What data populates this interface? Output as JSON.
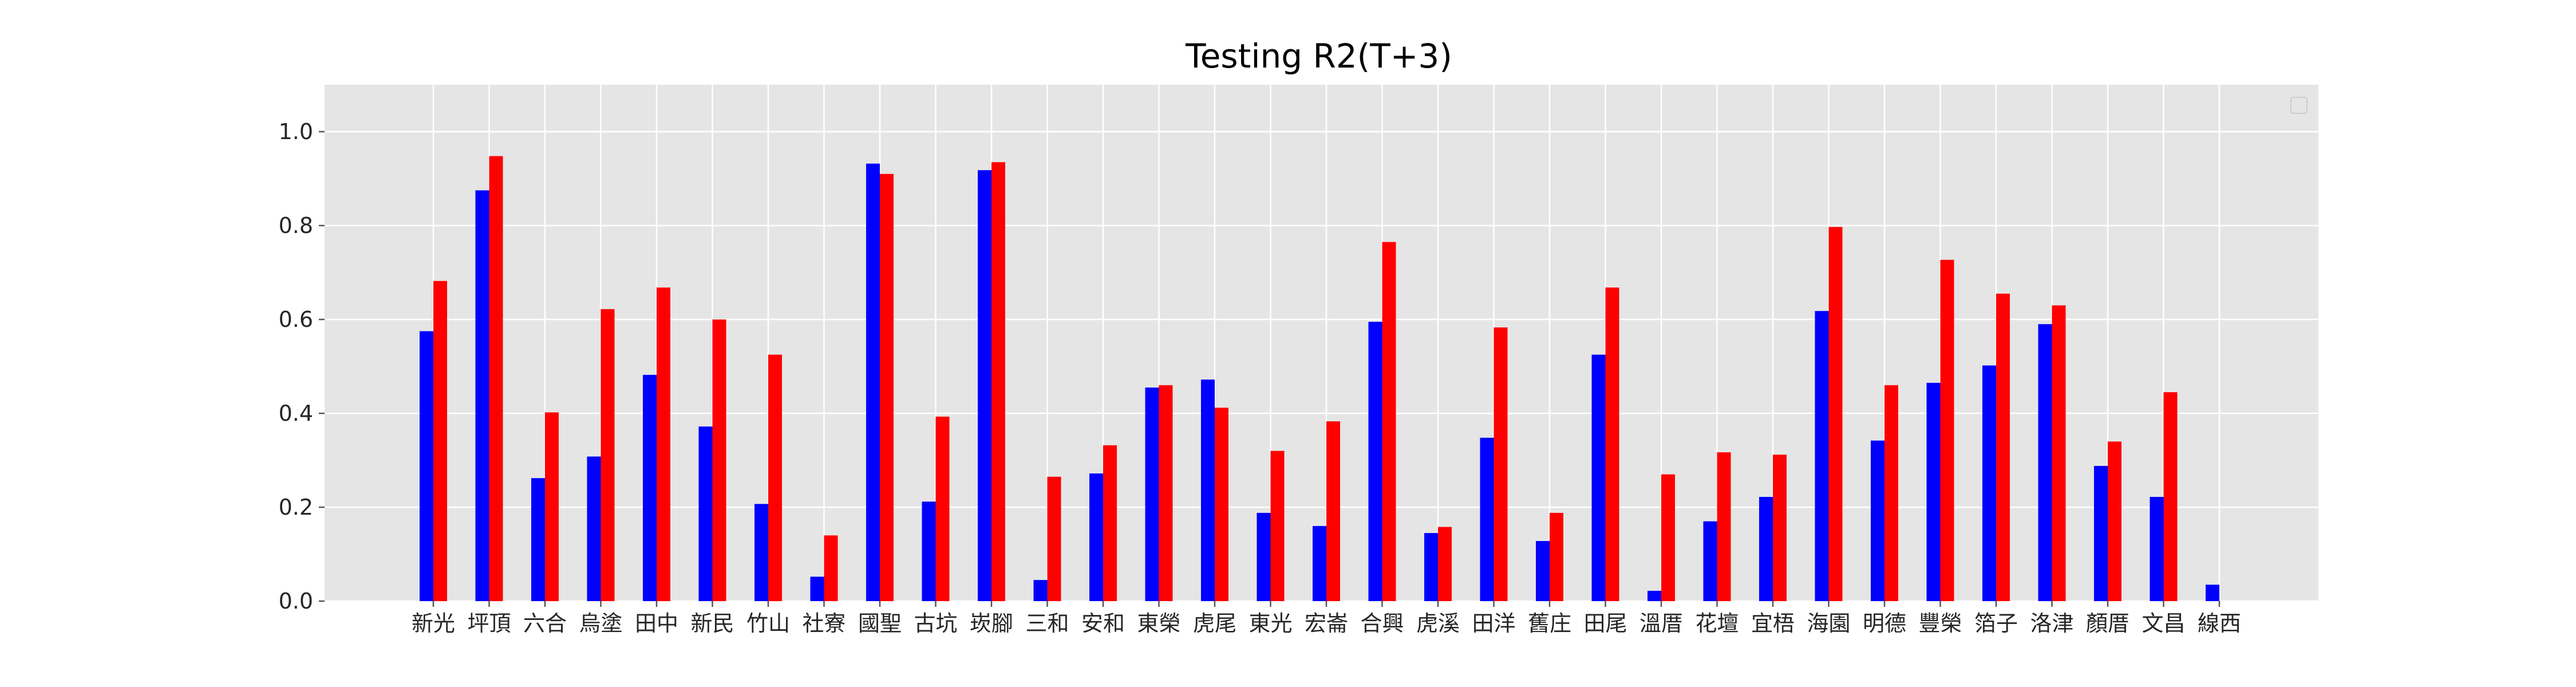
{
  "chart_data": {
    "type": "bar",
    "title": "Testing R2(T+3)",
    "xlabel": "",
    "ylabel": "",
    "ylim": [
      0,
      1.1
    ],
    "yticks": [
      "0.0",
      "0.2",
      "0.4",
      "0.6",
      "0.8",
      "1.0"
    ],
    "grid": true,
    "legend": "top-right",
    "categories": [
      "新光",
      "坪頂",
      "六合",
      "烏塗",
      "田中",
      "新民",
      "竹山",
      "社寮",
      "國聖",
      "古坑",
      "崁腳",
      "三和",
      "安和",
      "東榮",
      "虎尾",
      "東光",
      "宏崙",
      "合興",
      "虎溪",
      "田洋",
      "舊庄",
      "田尾",
      "溫厝",
      "花壇",
      "宜梧",
      "海園",
      "明德",
      "豐榮",
      "箔子",
      "洛津",
      "顏厝",
      "文昌",
      "線西"
    ],
    "series": [
      {
        "color": "#0000ff",
        "values": [
          0.575,
          0.875,
          0.262,
          0.308,
          0.482,
          0.372,
          0.207,
          0.052,
          0.932,
          0.212,
          0.918,
          0.045,
          0.272,
          0.455,
          0.472,
          0.188,
          0.16,
          0.595,
          0.145,
          0.348,
          0.128,
          0.525,
          0.022,
          0.17,
          0.222,
          0.618,
          0.342,
          0.465,
          0.502,
          0.59,
          0.288,
          0.222,
          0.035
        ]
      },
      {
        "color": "#ff0000",
        "values": [
          0.682,
          0.948,
          0.402,
          0.622,
          0.668,
          0.6,
          0.525,
          0.14,
          0.91,
          0.393,
          0.935,
          0.265,
          0.332,
          0.46,
          0.412,
          0.32,
          0.383,
          0.765,
          0.158,
          0.583,
          0.188,
          0.668,
          0.27,
          0.317,
          0.312,
          0.797,
          0.46,
          0.727,
          0.655,
          0.63,
          0.34,
          0.445,
          null
        ]
      }
    ],
    "colors": {
      "background": "#e5e5e5",
      "grid": "#ffffff",
      "legend_border": "#cccccc"
    }
  }
}
